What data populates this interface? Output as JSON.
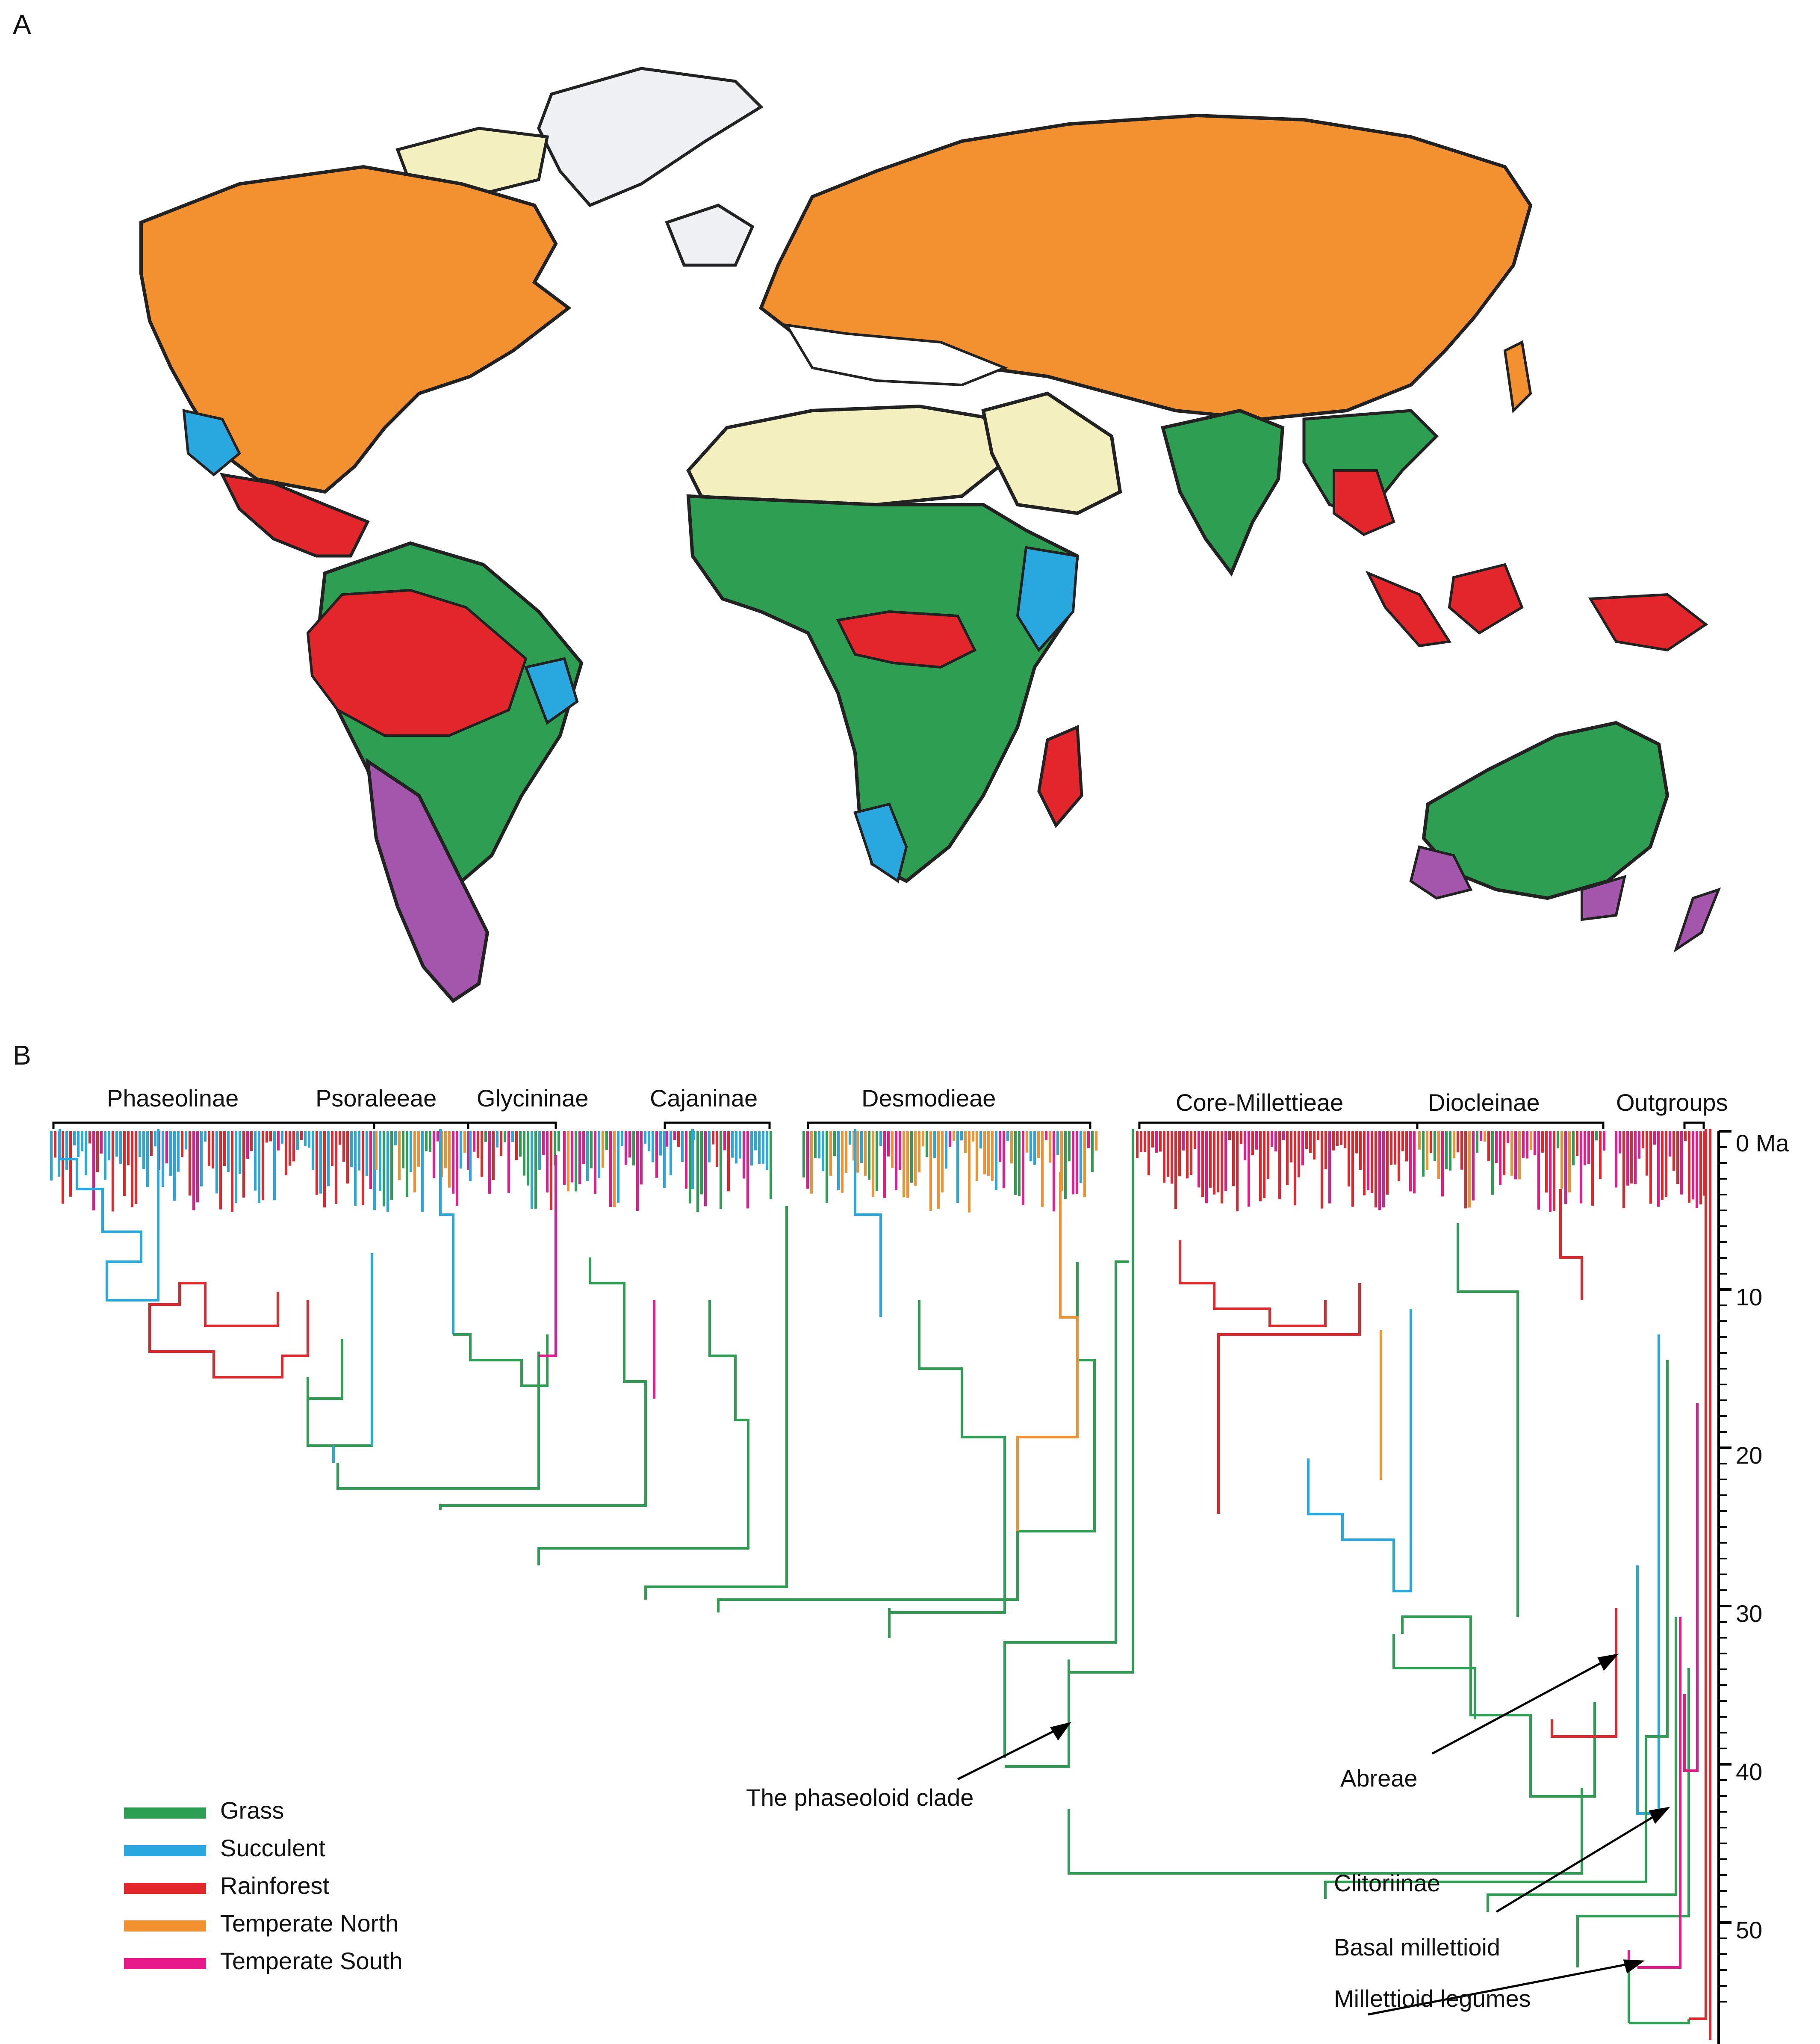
{
  "panels": {
    "a": "A",
    "b": "B"
  },
  "biomes": [
    {
      "key": "grass",
      "label": "Grass",
      "color": "#2e9e52"
    },
    {
      "key": "succ",
      "label": "Succulent",
      "color": "#29a8e0"
    },
    {
      "key": "rain",
      "label": "Rainforest",
      "color": "#e3262b"
    },
    {
      "key": "tempN",
      "label": "Temperate North",
      "color": "#f39130"
    },
    {
      "key": "tempS",
      "label": "Temperate South",
      "color": "#e8198b"
    }
  ],
  "map_colors": {
    "desert": "#f3efbf",
    "ice": "#eef0f4",
    "purple": "#a456ad",
    "coast": "#222222"
  },
  "clades": [
    {
      "label": "Phaseolinae"
    },
    {
      "label": "Psoraleeae"
    },
    {
      "label": "Glycininae"
    },
    {
      "label": "Cajaninae"
    },
    {
      "label": "Desmodieae"
    },
    {
      "label": "Core-Millettieae"
    },
    {
      "label": "Diocleinae"
    },
    {
      "label": "Outgroups"
    }
  ],
  "axis": {
    "unit_label": "0 Ma",
    "ticks": [
      "10",
      "20",
      "30",
      "40",
      "50"
    ],
    "max": 55
  },
  "annotations": {
    "phaseoloid": "The phaseoloid clade",
    "abreae": "Abreae",
    "clitoriinae": "Clitoriinae",
    "basal": "Basal millettioid",
    "millettioid": "Millettioid legumes"
  }
}
